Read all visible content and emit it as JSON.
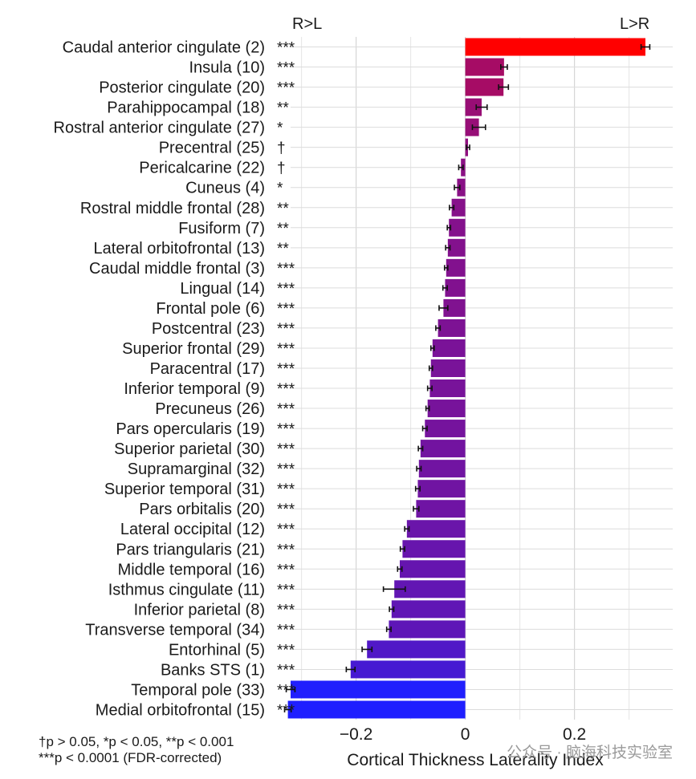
{
  "chart_data": {
    "type": "bar",
    "orientation": "horizontal",
    "title": "",
    "xlabel": "Cortical Thickness Laterality Index",
    "ylabel": "",
    "xlim": [
      -0.32,
      0.38
    ],
    "xticks": [
      -0.2,
      0,
      0.2
    ],
    "xtick_labels": [
      "−0.2",
      "0",
      "0.2"
    ],
    "grid": true,
    "direction_labels": {
      "left": "R>L",
      "right": "L>R"
    },
    "categories": [
      "Caudal anterior cingulate",
      "Insula",
      "Posterior cingulate",
      "Parahippocampal",
      "Rostral anterior cingulate",
      "Precentral",
      "Pericalcarine",
      "Cuneus",
      "Rostral middle frontal",
      "Fusiform",
      "Lateral orbitofrontal",
      "Caudal middle frontal",
      "Lingual",
      "Frontal pole",
      "Postcentral",
      "Superior frontal",
      "Paracentral",
      "Inferior temporal",
      "Precuneus",
      "Pars opercularis",
      "Superior parietal",
      "Supramarginal",
      "Superior temporal",
      "Pars orbitalis",
      "Lateral occipital",
      "Pars triangularis",
      "Middle temporal",
      "Isthmus cingulate",
      "Inferior parietal",
      "Transverse temporal",
      "Entorhinal",
      "Banks STS",
      "Temporal pole",
      "Medial orbitofrontal"
    ],
    "ranks": [
      "(2)",
      "(10)",
      "(20)",
      "(18)",
      "(27)",
      "(25)",
      "(22)",
      "(4)",
      "(28)",
      "(7)",
      "(13)",
      "(3)",
      "(14)",
      "(6)",
      "(23)",
      "(29)",
      "(17)",
      "(9)",
      "(26)",
      "(19)",
      "(30)",
      "(32)",
      "(31)",
      "(20)",
      "(12)",
      "(21)",
      "(16)",
      "(11)",
      "(8)",
      "(34)",
      "(5)",
      "(1)",
      "(33)",
      "(15)"
    ],
    "significance": [
      "***",
      "***",
      "***",
      "**",
      "*",
      "†",
      "†",
      "*",
      "**",
      "**",
      "**",
      "***",
      "***",
      "***",
      "***",
      "***",
      "***",
      "***",
      "***",
      "***",
      "***",
      "***",
      "***",
      "***",
      "***",
      "***",
      "***",
      "***",
      "***",
      "***",
      "***",
      "***",
      "***",
      "***"
    ],
    "values": [
      0.33,
      0.071,
      0.07,
      0.03,
      0.025,
      0.005,
      -0.008,
      -0.015,
      -0.025,
      -0.03,
      -0.032,
      -0.035,
      -0.037,
      -0.04,
      -0.05,
      -0.06,
      -0.063,
      -0.065,
      -0.069,
      -0.074,
      -0.082,
      -0.085,
      -0.087,
      -0.09,
      -0.107,
      -0.115,
      -0.12,
      -0.13,
      -0.135,
      -0.14,
      -0.18,
      -0.21,
      -0.32,
      -0.325
    ],
    "errors": [
      0.008,
      0.006,
      0.009,
      0.01,
      0.012,
      0.003,
      0.004,
      0.005,
      0.004,
      0.003,
      0.004,
      0.003,
      0.004,
      0.008,
      0.004,
      0.003,
      0.003,
      0.004,
      0.003,
      0.004,
      0.004,
      0.004,
      0.004,
      0.005,
      0.004,
      0.004,
      0.004,
      0.02,
      0.004,
      0.004,
      0.009,
      0.008,
      0.008,
      0.006
    ],
    "color_scale": {
      "min_color": "#1f1fff",
      "max_color": "#ff0000"
    }
  },
  "footnote": {
    "line1": "†p > 0.05, *p < 0.05, **p < 0.001",
    "line2": "***p < 0.0001 (FDR-corrected)"
  },
  "watermark": "公众号 · 脑海科技实验室"
}
